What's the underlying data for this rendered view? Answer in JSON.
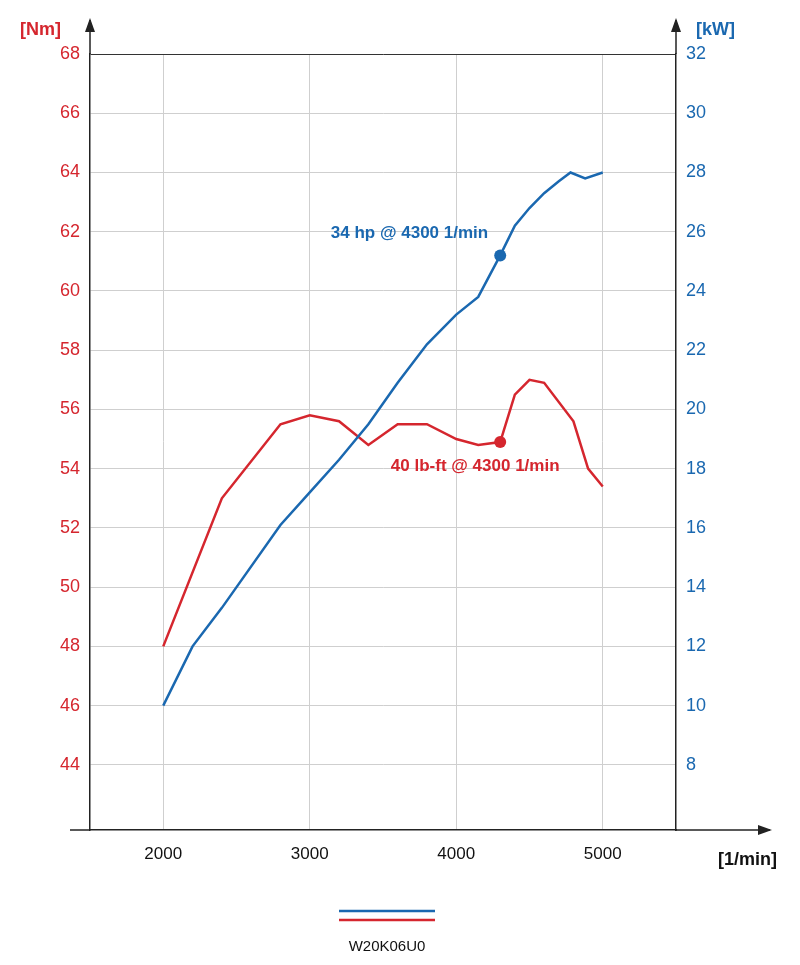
{
  "chart_data": {
    "type": "line",
    "x_label": "[1/min]",
    "y_label": "[Nm]",
    "y2_label": "[kW]",
    "xlim": [
      1500,
      5500
    ],
    "xticks": [
      2000,
      3000,
      4000,
      5000
    ],
    "ylim": [
      41.8,
      68
    ],
    "yticks": [
      44,
      46,
      48,
      50,
      52,
      54,
      56,
      58,
      60,
      62,
      64,
      66,
      68
    ],
    "y2lim": [
      5.8,
      32
    ],
    "y2ticks": [
      8,
      10,
      12,
      14,
      16,
      18,
      20,
      22,
      24,
      26,
      28,
      30,
      32
    ],
    "grid": true,
    "legend": "bottom",
    "legend_text": "W20K06U0",
    "series": [
      {
        "axis": "y2",
        "color": "#1a68b0",
        "x": [
          2000,
          2200,
          2400,
          2800,
          3000,
          3200,
          3400,
          3600,
          3800,
          4000,
          4150,
          4300,
          4400,
          4500,
          4600,
          4700,
          4780,
          4880,
          5000
        ],
        "values": [
          10,
          12,
          13.3,
          16.1,
          17.2,
          18.3,
          19.5,
          20.9,
          22.2,
          23.2,
          23.8,
          25.2,
          26.2,
          26.8,
          27.3,
          27.7,
          28,
          27.8,
          28
        ]
      },
      {
        "axis": "y",
        "color": "#d5262e",
        "x": [
          2000,
          2400,
          2800,
          3000,
          3200,
          3400,
          3600,
          3800,
          4000,
          4150,
          4300,
          4400,
          4500,
          4600,
          4800,
          4900,
          5000
        ],
        "values": [
          48,
          53,
          55.5,
          55.8,
          55.6,
          54.8,
          55.5,
          55.5,
          55,
          54.8,
          54.9,
          56.5,
          57,
          56.9,
          55.6,
          54,
          53.4
        ]
      }
    ],
    "annotations": [
      {
        "text": "34 hp @ 4300 1/min",
        "x": 4300,
        "y": 25.2,
        "axis": "y2",
        "color": "#1a68b0"
      },
      {
        "text": "40 lb-ft @ 4300 1/min",
        "x": 4300,
        "y": 54.9,
        "axis": "y",
        "color": "#d5262e"
      }
    ]
  }
}
